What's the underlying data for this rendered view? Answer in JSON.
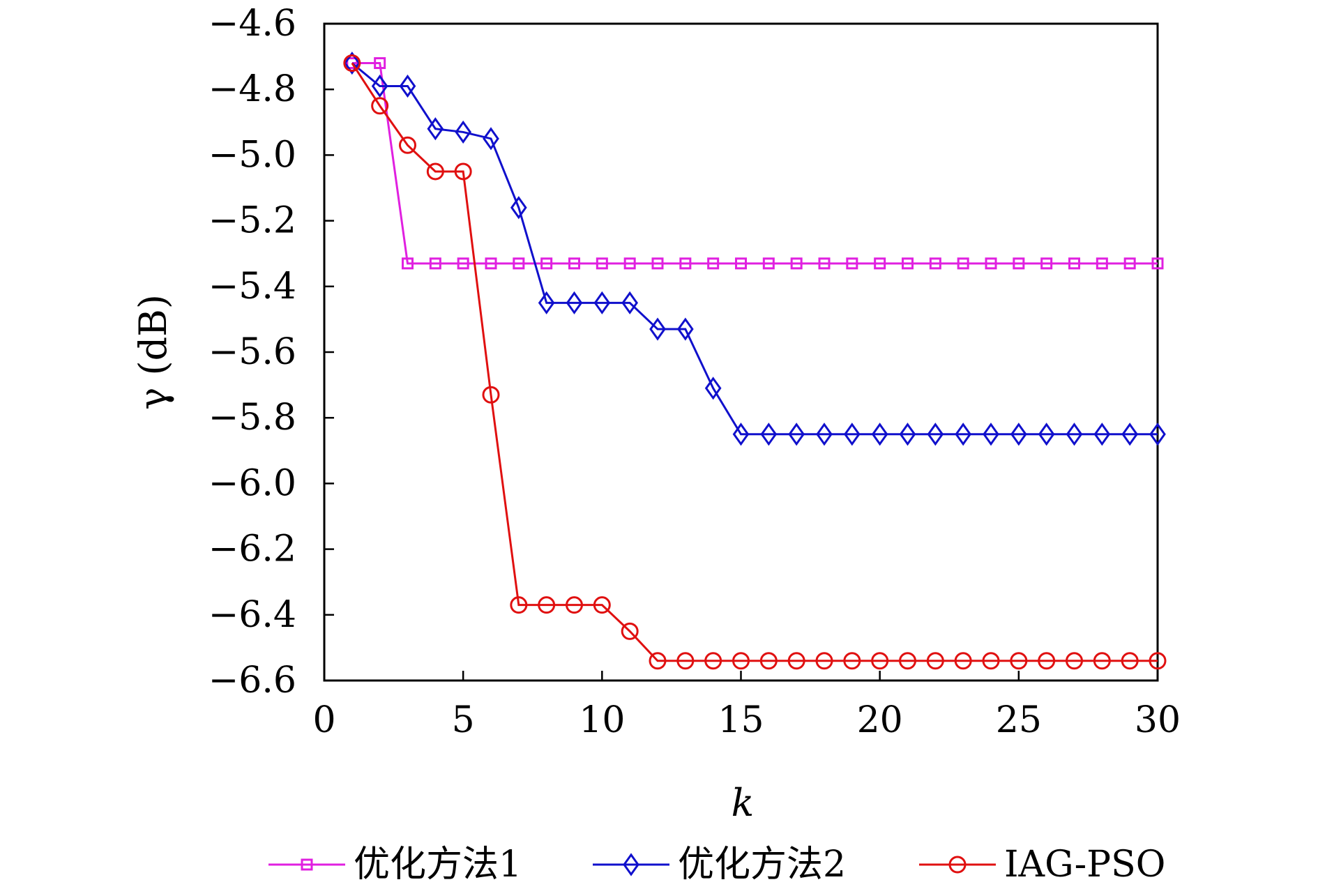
{
  "chart_data": {
    "type": "line",
    "xlabel": "k",
    "ylabel": "γ (dB)",
    "xlim": [
      0,
      30
    ],
    "ylim": [
      -6.6,
      -4.6
    ],
    "x_ticks": [
      0,
      5,
      10,
      15,
      20,
      25,
      30
    ],
    "x_tick_labels": [
      "0",
      "5",
      "10",
      "15",
      "20",
      "25",
      "30"
    ],
    "y_ticks": [
      -4.6,
      -4.8,
      -5.0,
      -5.2,
      -5.4,
      -5.6,
      -5.8,
      -6.0,
      -6.2,
      -6.4,
      -6.6
    ],
    "y_tick_labels": [
      "−4.6",
      "−4.8",
      "−5.0",
      "−5.2",
      "−5.4",
      "−5.6",
      "−5.8",
      "−6.0",
      "−6.2",
      "−6.4",
      "−6.6"
    ],
    "grid": false,
    "legend_position": "bottom",
    "x": [
      1,
      2,
      3,
      4,
      5,
      6,
      7,
      8,
      9,
      10,
      11,
      12,
      13,
      14,
      15,
      16,
      17,
      18,
      19,
      20,
      21,
      22,
      23,
      24,
      25,
      26,
      27,
      28,
      29,
      30
    ],
    "series": [
      {
        "name": "优化方法1",
        "color": "#e020e0",
        "marker": "square",
        "values": [
          -4.72,
          -4.72,
          -5.33,
          -5.33,
          -5.33,
          -5.33,
          -5.33,
          -5.33,
          -5.33,
          -5.33,
          -5.33,
          -5.33,
          -5.33,
          -5.33,
          -5.33,
          -5.33,
          -5.33,
          -5.33,
          -5.33,
          -5.33,
          -5.33,
          -5.33,
          -5.33,
          -5.33,
          -5.33,
          -5.33,
          -5.33,
          -5.33,
          -5.33,
          -5.33
        ]
      },
      {
        "name": "优化方法2",
        "color": "#1010cc",
        "marker": "diamond",
        "values": [
          -4.72,
          -4.79,
          -4.79,
          -4.92,
          -4.93,
          -4.95,
          -5.16,
          -5.45,
          -5.45,
          -5.45,
          -5.45,
          -5.53,
          -5.53,
          -5.71,
          -5.85,
          -5.85,
          -5.85,
          -5.85,
          -5.85,
          -5.85,
          -5.85,
          -5.85,
          -5.85,
          -5.85,
          -5.85,
          -5.85,
          -5.85,
          -5.85,
          -5.85,
          -5.85
        ]
      },
      {
        "name": "IAG-PSO",
        "color": "#e01010",
        "marker": "circle",
        "values": [
          -4.72,
          -4.85,
          -4.97,
          -5.05,
          -5.05,
          -5.73,
          -6.37,
          -6.37,
          -6.37,
          -6.37,
          -6.45,
          -6.54,
          -6.54,
          -6.54,
          -6.54,
          -6.54,
          -6.54,
          -6.54,
          -6.54,
          -6.54,
          -6.54,
          -6.54,
          -6.54,
          -6.54,
          -6.54,
          -6.54,
          -6.54,
          -6.54,
          -6.54,
          -6.54
        ]
      }
    ]
  }
}
